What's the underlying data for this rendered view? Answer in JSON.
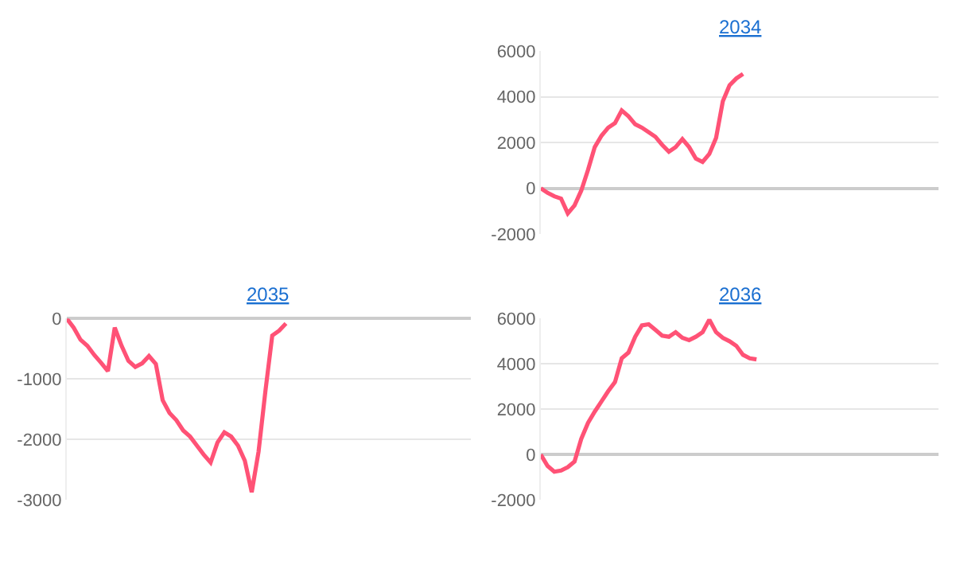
{
  "chart_data": [
    {
      "type": "line",
      "title": "2034",
      "categories": [
        null,
        null,
        null,
        null,
        null,
        null,
        null,
        null,
        null,
        null,
        null,
        null,
        null,
        null,
        null,
        null,
        null,
        null,
        null,
        null,
        null,
        null,
        null,
        null,
        null,
        null,
        null,
        null,
        null,
        null,
        null,
        null,
        null,
        null,
        null,
        null,
        null,
        null,
        null,
        null,
        null,
        null,
        null,
        null,
        null,
        null,
        null,
        null,
        null,
        null,
        null,
        null,
        null,
        null,
        null,
        null,
        null,
        null,
        null,
        null
      ],
      "series": [
        {
          "color": "#ff5276",
          "values": [
            0,
            -200,
            -350,
            -450,
            -1100,
            -750,
            -100,
            800,
            1800,
            2300,
            2650,
            2850,
            3400,
            3150,
            2800,
            2650,
            2450,
            2250,
            1900,
            1600,
            1800,
            2150,
            1800,
            1300,
            1150,
            1500,
            2200,
            3800,
            4500,
            4800,
            5000,
            null,
            null,
            null,
            null,
            null,
            null,
            null,
            null,
            null,
            null,
            null,
            null,
            null,
            null,
            null,
            null,
            null,
            null,
            null,
            null,
            null,
            null,
            null,
            null,
            null,
            null,
            null,
            null,
            null
          ]
        }
      ],
      "ylim": [
        -2000,
        6000
      ],
      "yticks": [
        -2000,
        0,
        2000,
        4000,
        6000
      ],
      "grid": "y",
      "tick_labels": "y"
    },
    {
      "type": "line",
      "title": "2035",
      "categories": [
        null,
        null,
        null,
        null,
        null,
        null,
        null,
        null,
        null,
        null,
        null,
        null,
        null,
        null,
        null,
        null,
        null,
        null,
        null,
        null,
        null,
        null,
        null,
        null,
        null,
        null,
        null,
        null,
        null,
        null,
        null,
        null,
        null,
        null,
        null,
        null,
        null,
        null,
        null,
        null,
        null,
        null,
        null,
        null,
        null,
        null,
        null,
        null,
        null,
        null,
        null,
        null,
        null,
        null,
        null,
        null,
        null,
        null,
        null,
        null
      ],
      "series": [
        {
          "color": "#ff5276",
          "values": [
            0,
            -150,
            -350,
            -450,
            -600,
            -730,
            -870,
            -150,
            -450,
            -700,
            -800,
            -740,
            -620,
            -750,
            -1350,
            -1560,
            -1680,
            -1850,
            -1950,
            -2100,
            -2250,
            -2380,
            -2050,
            -1880,
            -1950,
            -2100,
            -2350,
            -2870,
            -2200,
            -1200,
            -280,
            -200,
            -80,
            null,
            null,
            null,
            null,
            null,
            null,
            null,
            null,
            null,
            null,
            null,
            null,
            null,
            null,
            null,
            null,
            null,
            null,
            null,
            null,
            null,
            null,
            null,
            null,
            null,
            null,
            null
          ]
        }
      ],
      "ylim": [
        -3000,
        0
      ],
      "yticks": [
        -3000,
        -2000,
        -1000,
        0
      ],
      "grid": "y",
      "tick_labels": "y"
    },
    {
      "type": "line",
      "title": "2036",
      "categories": [
        null,
        null,
        null,
        null,
        null,
        null,
        null,
        null,
        null,
        null,
        null,
        null,
        null,
        null,
        null,
        null,
        null,
        null,
        null,
        null,
        null,
        null,
        null,
        null,
        null,
        null,
        null,
        null,
        null,
        null,
        null,
        null,
        null,
        null,
        null,
        null,
        null,
        null,
        null,
        null,
        null,
        null,
        null,
        null,
        null,
        null,
        null,
        null,
        null,
        null,
        null,
        null,
        null,
        null,
        null,
        null,
        null,
        null,
        null,
        null
      ],
      "series": [
        {
          "color": "#ff5276",
          "values": [
            0,
            -500,
            -750,
            -700,
            -550,
            -300,
            700,
            1400,
            1900,
            2350,
            2800,
            3200,
            4250,
            4500,
            5200,
            5700,
            5750,
            5500,
            5250,
            5200,
            5400,
            5150,
            5050,
            5200,
            5400,
            5950,
            5400,
            5150,
            5000,
            4800,
            4400,
            4250,
            4200,
            null,
            null,
            null,
            null,
            null,
            null,
            null,
            null,
            null,
            null,
            null,
            null,
            null,
            null,
            null,
            null,
            null,
            null,
            null,
            null,
            null,
            null,
            null,
            null,
            null,
            null,
            null
          ]
        }
      ],
      "ylim": [
        -2000,
        6000
      ],
      "yticks": [
        -2000,
        0,
        2000,
        4000,
        6000
      ],
      "grid": "y",
      "tick_labels": "y"
    }
  ]
}
